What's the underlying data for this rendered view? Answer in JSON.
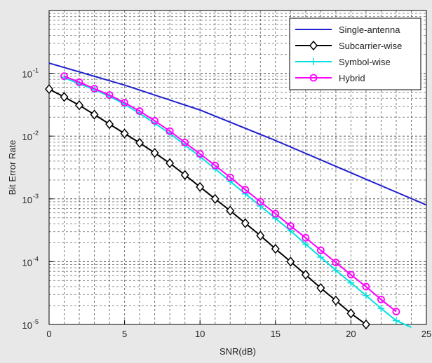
{
  "chart_data": {
    "type": "line",
    "xlabel": "SNR(dB)",
    "ylabel": "Bit Error Rate",
    "xlim": [
      0,
      25
    ],
    "ylim": [
      1e-05,
      1
    ],
    "yscale": "log",
    "grid": true,
    "legend_position": "top-right",
    "x_ticks": [
      "0",
      "5",
      "10",
      "15",
      "20",
      "25"
    ],
    "y_ticks": [
      {
        "base": "10",
        "exp": "-1",
        "value": 0.1
      },
      {
        "base": "10",
        "exp": "-2",
        "value": 0.01
      },
      {
        "base": "10",
        "exp": "-3",
        "value": 0.001
      },
      {
        "base": "10",
        "exp": "-4",
        "value": 0.0001
      },
      {
        "base": "10",
        "exp": "-5",
        "value": 1e-05
      }
    ],
    "series": [
      {
        "name": "Single-antenna",
        "color": "#1f1fd0",
        "marker": "none",
        "x": [
          0,
          5,
          10,
          15,
          20,
          25
        ],
        "y": [
          0.145,
          0.065,
          0.026,
          0.0085,
          0.0026,
          0.0008
        ]
      },
      {
        "name": "Subcarrier-wise",
        "color": "#000000",
        "marker": "diamond",
        "x": [
          0,
          1,
          2,
          3,
          4,
          5,
          6,
          7,
          8,
          9,
          10,
          11,
          12,
          13,
          14,
          15,
          16,
          17,
          18,
          19,
          20,
          21
        ],
        "y": [
          0.056,
          0.042,
          0.031,
          0.022,
          0.0155,
          0.011,
          0.0078,
          0.0054,
          0.0037,
          0.0024,
          0.00155,
          0.001,
          0.00065,
          0.00041,
          0.00026,
          0.00016,
          0.0001,
          6.2e-05,
          3.8e-05,
          2.4e-05,
          1.5e-05,
          1e-05
        ]
      },
      {
        "name": "Symbol-wise",
        "color": "#00e0e0",
        "marker": "plus",
        "x": [
          1,
          2,
          3,
          4,
          5,
          6,
          7,
          8,
          9,
          10,
          11,
          12,
          13,
          14,
          15,
          16,
          17,
          18,
          19,
          20,
          21,
          22,
          23,
          24
        ],
        "y": [
          0.085,
          0.068,
          0.055,
          0.043,
          0.032,
          0.023,
          0.016,
          0.011,
          0.0072,
          0.0047,
          0.003,
          0.0019,
          0.0012,
          0.00077,
          0.00049,
          0.00031,
          0.00019,
          0.000118,
          7.3e-05,
          4.6e-05,
          2.9e-05,
          1.8e-05,
          1.15e-05,
          9e-06
        ]
      },
      {
        "name": "Hybrid",
        "color": "#ff00ff",
        "marker": "circle",
        "x": [
          1,
          2,
          3,
          4,
          5,
          6,
          7,
          8,
          9,
          10,
          11,
          12,
          13,
          14,
          15,
          16,
          17,
          18,
          19,
          20,
          21,
          22,
          23
        ],
        "y": [
          0.09,
          0.072,
          0.057,
          0.045,
          0.034,
          0.025,
          0.0175,
          0.012,
          0.0079,
          0.0052,
          0.0034,
          0.0022,
          0.0014,
          0.0009,
          0.00058,
          0.00037,
          0.00024,
          0.000152,
          9.7e-05,
          6.2e-05,
          4e-05,
          2.5e-05,
          1.6e-05
        ]
      }
    ]
  }
}
